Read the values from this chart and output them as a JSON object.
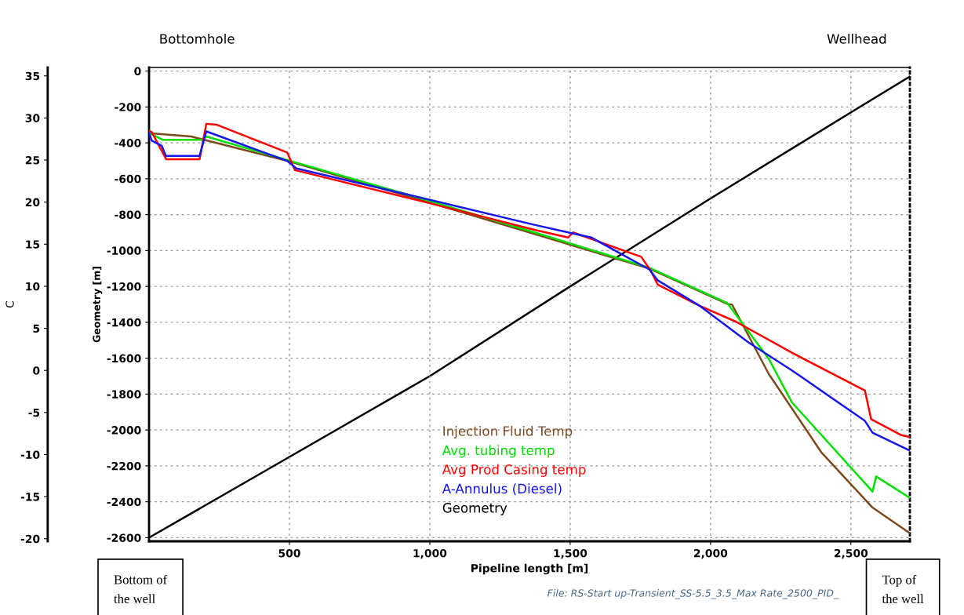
{
  "chart_data": {
    "type": "line",
    "xlabel": "Pipeline length [m]",
    "ylabel": "C",
    "y2label": "Geometry [m]",
    "xlim": [
      0,
      2710
    ],
    "xticks": [
      {
        "value": 500,
        "label": "500"
      },
      {
        "value": 1000,
        "label": "1,000"
      },
      {
        "value": 1500,
        "label": "1,500"
      },
      {
        "value": 2000,
        "label": "2,000"
      },
      {
        "value": 2500,
        "label": "2,500"
      }
    ],
    "ylim": [
      -20.3,
      36
    ],
    "yticks": [
      -20,
      -15,
      -10,
      -5,
      0,
      5,
      10,
      15,
      20,
      25,
      30,
      35
    ],
    "y2lim": [
      -2620,
      20
    ],
    "y2ticks": [
      -2600,
      -2400,
      -2200,
      -2000,
      -1800,
      -1600,
      -1400,
      -1200,
      -1000,
      -800,
      -600,
      -400,
      -200,
      0
    ],
    "grid": true,
    "legend": "bottom",
    "line_style": "solid",
    "marker": "none",
    "series": [
      {
        "name": "Injection Fluid Temp",
        "color": "#7b4a1e",
        "x": [
          0,
          150,
          503,
          984,
          1373,
          1782,
          2060,
          2077,
          2207,
          2394,
          2577,
          2708
        ],
        "values": [
          28.2,
          27.8,
          24.8,
          20.1,
          16.2,
          12.1,
          7.9,
          7.8,
          -0.4,
          -9.7,
          -16.3,
          -19.3
        ]
      },
      {
        "name": "Avg. tubing temp",
        "color": "#00e000",
        "x": [
          0,
          50,
          190,
          204,
          503,
          984,
          1373,
          1782,
          2060,
          2207,
          2290,
          2577,
          2590,
          2708
        ],
        "values": [
          28.2,
          27.4,
          27.4,
          27.8,
          24.9,
          20.3,
          16.4,
          12.2,
          8.0,
          1.4,
          -3.8,
          -14.4,
          -12.6,
          -15.1
        ]
      },
      {
        "name": "Avg Prod Casing temp",
        "color": "#ff0000",
        "x": [
          0,
          10,
          61,
          180,
          204,
          240,
          492,
          520,
          984,
          1373,
          1493,
          1510,
          1753,
          1786,
          1812,
          1960,
          2090,
          2290,
          2550,
          2572,
          2680,
          2708
        ],
        "values": [
          28.5,
          28.3,
          25.1,
          25.1,
          29.3,
          29.2,
          25.9,
          23.8,
          20.0,
          16.7,
          15.8,
          16.4,
          13.5,
          11.9,
          10.2,
          7.7,
          5.8,
          2.1,
          -2.4,
          -5.8,
          -7.7,
          -7.9
        ]
      },
      {
        "name": "A-Annulus (Diesel)",
        "color": "#1515ee",
        "x": [
          0,
          10,
          45,
          60,
          180,
          204,
          492,
          525,
          909,
          1373,
          1493,
          1575,
          1782,
          1812,
          1960,
          2136,
          2290,
          2550,
          2577,
          2708
        ],
        "values": [
          28.2,
          27.3,
          26.7,
          25.5,
          25.5,
          28.4,
          24.9,
          24.0,
          21.0,
          17.3,
          16.4,
          15.8,
          12.0,
          10.7,
          7.7,
          3.3,
          0.0,
          -6.0,
          -7.4,
          -9.5
        ]
      },
      {
        "name": "Geometry",
        "color": "#000000",
        "axis": "y2",
        "x": [
          0,
          500,
          1000,
          1500,
          2000,
          2500,
          2710
        ],
        "values": [
          -2600,
          -2150,
          -1700,
          -1200,
          -710,
          -230,
          -30
        ]
      }
    ],
    "annotations": [
      "Bottomhole",
      "Wellhead",
      "Bottom of the well",
      "Top of the well",
      "File: RS-Start up-Transient_SS-5.5_3.5_Max Rate_2500_PID_"
    ]
  }
}
